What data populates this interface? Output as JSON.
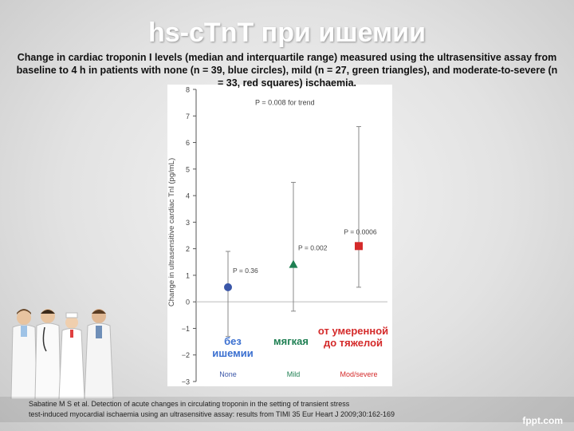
{
  "slide": {
    "title": "hs-cTnT при ишемии",
    "subtitle": "Change in cardiac troponin I levels (median and interquartile range) measured using the ultrasensitive assay from baseline to 4 h in patients with none (n = 39, blue circles), mild (n = 27, green triangles), and moderate-to-severe (n = 33, red squares) ischaemia.",
    "citation_line1": "Sabatine M S et al. Detection of acute changes in circulating troponin in the setting of transient stress",
    "citation_line2": "test-induced myocardial ischaemia using an ultrasensitive assay: results from TIMI 35 Eur Heart J 2009;30:162-169",
    "watermark": "fppt.com"
  },
  "labels_ru": {
    "none": [
      "без",
      "ишемии"
    ],
    "mild": [
      "мягкая"
    ],
    "severe": [
      "от умеренной",
      "до тяжелой"
    ]
  },
  "chart_data": {
    "type": "scatter",
    "ylabel": "Change in ultrasensitive cardiac TnI (pg/mL)",
    "ylim": [
      -3,
      8
    ],
    "yticks": [
      -3,
      -2,
      -1,
      0,
      1,
      2,
      3,
      4,
      5,
      6,
      7,
      8
    ],
    "categories": [
      "None",
      "Mild",
      "Mod/severe"
    ],
    "trend_annotation": "P = 0.008 for trend",
    "series": [
      {
        "category": "None",
        "median": 0.55,
        "q1": -1.3,
        "q3": 1.9,
        "p_label": "P = 0.36",
        "marker": "circle",
        "color": "#3a56a8"
      },
      {
        "category": "Mild",
        "median": 1.4,
        "q1": -0.35,
        "q3": 4.5,
        "p_label": "P = 0.002",
        "marker": "triangle",
        "color": "#1e7f52"
      },
      {
        "category": "Mod/severe",
        "median": 2.1,
        "q1": 0.55,
        "q3": 6.6,
        "p_label": "P = 0.0006",
        "marker": "square",
        "color": "#d42a2a"
      }
    ],
    "category_colors": [
      "#3a56a8",
      "#1e7f52",
      "#d42a2a"
    ]
  }
}
